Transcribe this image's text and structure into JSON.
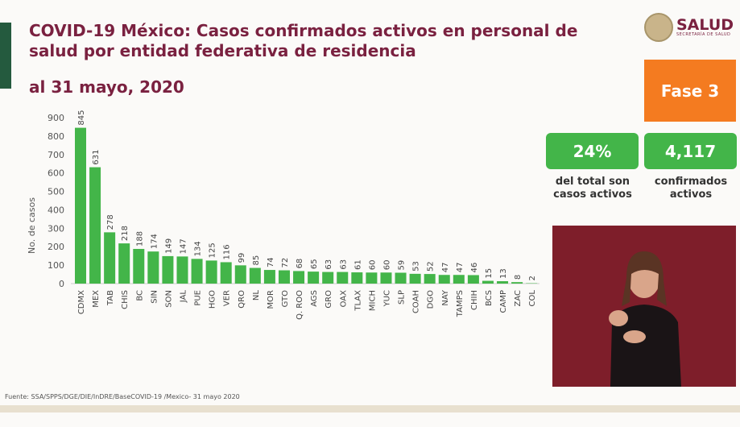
{
  "header": {
    "title": "COVID-19 México: Casos confirmados activos en personal de salud por entidad federativa de residencia",
    "date": "al 31 mayo, 2020"
  },
  "logo": {
    "text": "SALUD",
    "subtext": "SECRETARÍA DE SALUD"
  },
  "phase": {
    "label": "Fase 3",
    "color": "#f47b20"
  },
  "kpis": [
    {
      "value": "24%",
      "label": "del total son casos activos"
    },
    {
      "value": "4,117",
      "label": "confirmados activos"
    }
  ],
  "source": "Fuente: SSA/SPPS/DGE/DIE/InDRE/BaseCOVID-19 /Mexico- 31 mayo 2020",
  "chart_data": {
    "type": "bar",
    "ylabel": "No. de casos",
    "ylim": [
      0,
      900
    ],
    "yticks": [
      0,
      100,
      200,
      300,
      400,
      500,
      600,
      700,
      800,
      900
    ],
    "bar_color": "#43b549",
    "categories": [
      "CDMX",
      "MEX",
      "TAB",
      "CHIS",
      "BC",
      "SIN",
      "SON",
      "JAL",
      "PUE",
      "HGO",
      "VER",
      "QRO",
      "NL",
      "MOR",
      "GTO",
      "Q. ROO",
      "AGS",
      "GRO",
      "OAX",
      "TLAX",
      "MICH",
      "YUC",
      "SLP",
      "COAH",
      "DGO",
      "NAY",
      "TAMPS",
      "CHIH",
      "BCS",
      "CAMP",
      "ZAC",
      "COL"
    ],
    "values": [
      845,
      631,
      278,
      218,
      188,
      174,
      149,
      147,
      134,
      125,
      116,
      99,
      85,
      74,
      72,
      68,
      65,
      63,
      63,
      61,
      60,
      60,
      59,
      53,
      52,
      47,
      47,
      46,
      15,
      13,
      8,
      2
    ]
  }
}
